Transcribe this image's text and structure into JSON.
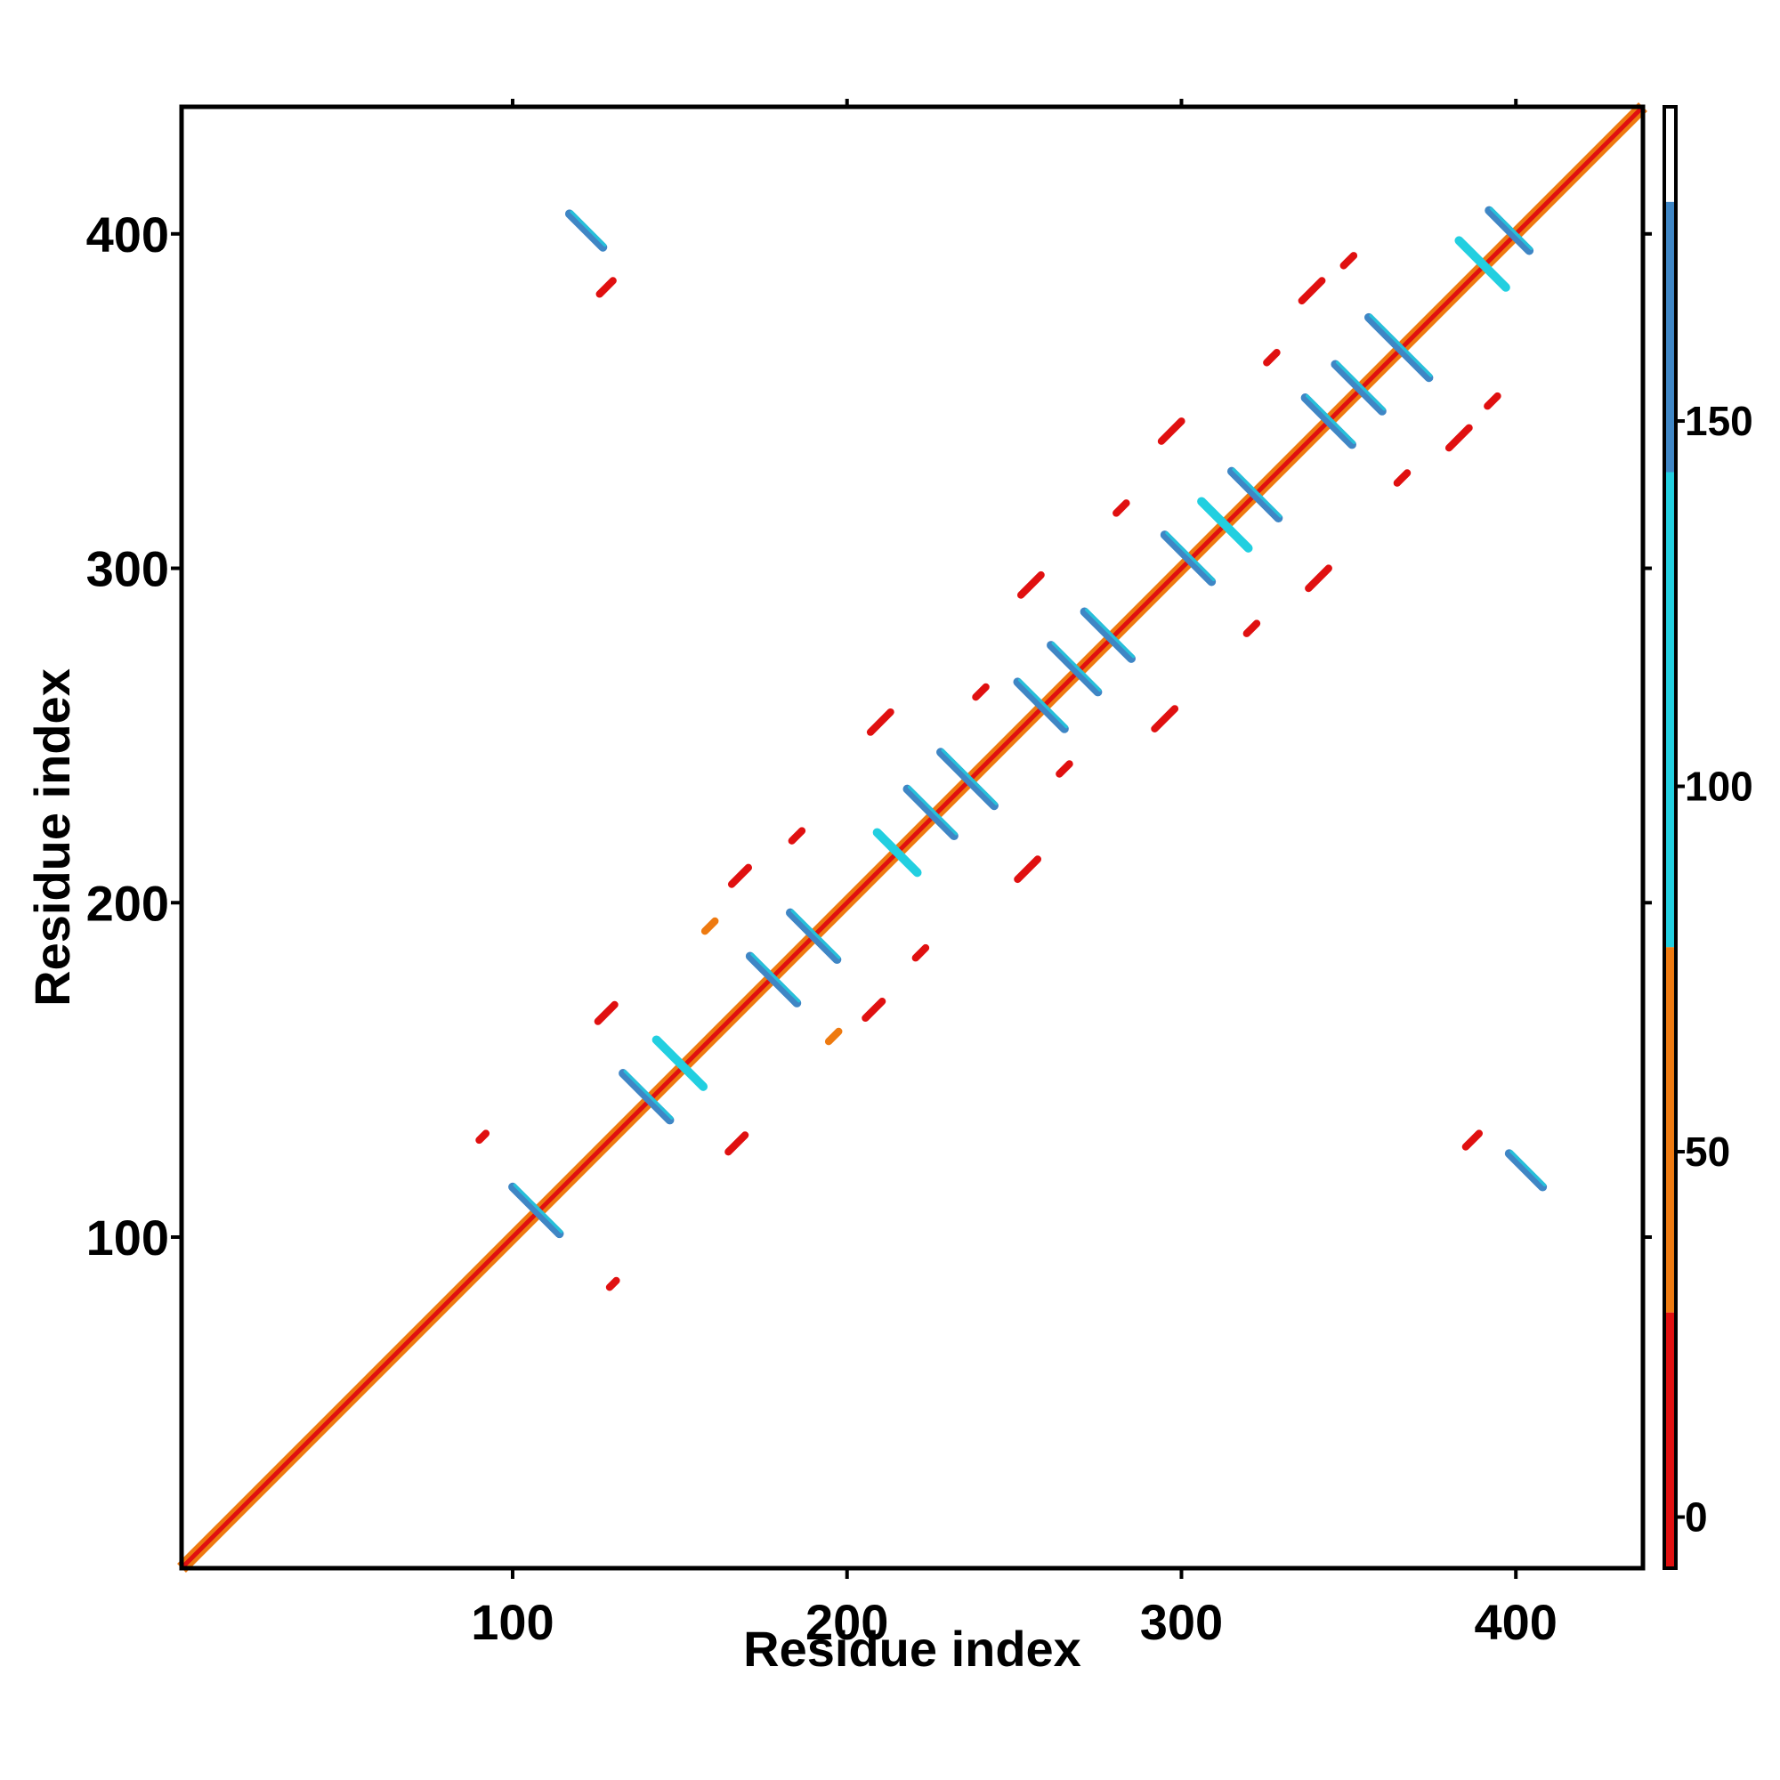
{
  "chart_data": {
    "type": "heatmap",
    "title": "",
    "xlabel": "Residue index",
    "ylabel": "Residue index",
    "xlim": [
      1,
      438
    ],
    "ylim": [
      1,
      438
    ],
    "x_ticks": [
      "100",
      "200",
      "300",
      "400"
    ],
    "y_ticks": [
      "100",
      "200",
      "300",
      "400"
    ],
    "colorbar": {
      "ticks": [
        "0",
        "50",
        "100",
        "150"
      ],
      "range": [
        -7,
        193
      ],
      "bands": [
        {
          "from": -7,
          "to": 28,
          "color": "#e01010"
        },
        {
          "from": 28,
          "to": 78,
          "color": "#ee7a10"
        },
        {
          "from": 78,
          "to": 143,
          "color": "#22cfe0"
        },
        {
          "from": 143,
          "to": 180,
          "color": "#3f86c5"
        },
        {
          "from": 180,
          "to": 193,
          "color": "#ffffff"
        }
      ]
    },
    "diagonal": {
      "from": 1,
      "to": 438
    },
    "features": [
      {
        "kind": "antiparallel",
        "x": 107,
        "y": 108,
        "len": 14,
        "color": "#3f86c5"
      },
      {
        "kind": "antiparallel",
        "x": 140,
        "y": 142,
        "len": 14,
        "color": "#3f86c5"
      },
      {
        "kind": "antiparallel",
        "x": 150,
        "y": 152,
        "len": 14,
        "color": "#22cfe0"
      },
      {
        "kind": "antiparallel",
        "x": 178,
        "y": 177,
        "len": 14,
        "color": "#3f86c5"
      },
      {
        "kind": "antiparallel",
        "x": 190,
        "y": 190,
        "len": 14,
        "color": "#3f86c5"
      },
      {
        "kind": "antiparallel",
        "x": 215,
        "y": 215,
        "len": 12,
        "color": "#22cfe0"
      },
      {
        "kind": "antiparallel",
        "x": 225,
        "y": 227,
        "len": 14,
        "color": "#3f86c5"
      },
      {
        "kind": "antiparallel",
        "x": 236,
        "y": 237,
        "len": 16,
        "color": "#3f86c5"
      },
      {
        "kind": "antiparallel",
        "x": 258,
        "y": 259,
        "len": 14,
        "color": "#3f86c5"
      },
      {
        "kind": "antiparallel",
        "x": 268,
        "y": 270,
        "len": 14,
        "color": "#3f86c5"
      },
      {
        "kind": "antiparallel",
        "x": 278,
        "y": 280,
        "len": 14,
        "color": "#3f86c5"
      },
      {
        "kind": "antiparallel",
        "x": 302,
        "y": 303,
        "len": 14,
        "color": "#3f86c5"
      },
      {
        "kind": "antiparallel",
        "x": 313,
        "y": 313,
        "len": 14,
        "color": "#22cfe0"
      },
      {
        "kind": "antiparallel",
        "x": 322,
        "y": 322,
        "len": 14,
        "color": "#3f86c5"
      },
      {
        "kind": "antiparallel",
        "x": 344,
        "y": 344,
        "len": 14,
        "color": "#3f86c5"
      },
      {
        "kind": "antiparallel",
        "x": 353,
        "y": 354,
        "len": 14,
        "color": "#3f86c5"
      },
      {
        "kind": "antiparallel",
        "x": 365,
        "y": 366,
        "len": 18,
        "color": "#3f86c5"
      },
      {
        "kind": "antiparallel",
        "x": 390,
        "y": 391,
        "len": 14,
        "color": "#22cfe0"
      },
      {
        "kind": "antiparallel",
        "x": 398,
        "y": 401,
        "len": 12,
        "color": "#3f86c5"
      },
      {
        "kind": "antiparallel",
        "x": 122,
        "y": 401,
        "len": 10,
        "color": "#3f86c5"
      },
      {
        "kind": "antiparallel",
        "x": 403,
        "y": 120,
        "len": 10,
        "color": "#3f86c5"
      },
      {
        "kind": "parallel",
        "x": 128,
        "y": 167,
        "len": 5,
        "color": "#e01010"
      },
      {
        "kind": "parallel",
        "x": 167,
        "y": 128,
        "len": 5,
        "color": "#e01010"
      },
      {
        "kind": "parallel",
        "x": 168,
        "y": 208,
        "len": 5,
        "color": "#e01010"
      },
      {
        "kind": "parallel",
        "x": 208,
        "y": 168,
        "len": 5,
        "color": "#e01010"
      },
      {
        "kind": "parallel",
        "x": 210,
        "y": 254,
        "len": 6,
        "color": "#e01010"
      },
      {
        "kind": "parallel",
        "x": 254,
        "y": 210,
        "len": 6,
        "color": "#e01010"
      },
      {
        "kind": "parallel",
        "x": 255,
        "y": 295,
        "len": 6,
        "color": "#e01010"
      },
      {
        "kind": "parallel",
        "x": 295,
        "y": 255,
        "len": 6,
        "color": "#e01010"
      },
      {
        "kind": "parallel",
        "x": 297,
        "y": 341,
        "len": 6,
        "color": "#e01010"
      },
      {
        "kind": "parallel",
        "x": 341,
        "y": 297,
        "len": 6,
        "color": "#e01010"
      },
      {
        "kind": "parallel",
        "x": 339,
        "y": 383,
        "len": 6,
        "color": "#e01010"
      },
      {
        "kind": "parallel",
        "x": 383,
        "y": 339,
        "len": 6,
        "color": "#e01010"
      },
      {
        "kind": "parallel",
        "x": 128,
        "y": 384,
        "len": 4,
        "color": "#e01010"
      },
      {
        "kind": "parallel",
        "x": 387,
        "y": 129,
        "len": 4,
        "color": "#e01010"
      },
      {
        "kind": "parallel",
        "x": 91,
        "y": 130,
        "len": 2,
        "color": "#e01010"
      },
      {
        "kind": "parallel",
        "x": 130,
        "y": 86,
        "len": 2,
        "color": "#e01010"
      },
      {
        "kind": "parallel",
        "x": 159,
        "y": 193,
        "len": 3,
        "color": "#ee7a10"
      },
      {
        "kind": "parallel",
        "x": 196,
        "y": 160,
        "len": 3,
        "color": "#ee7a10"
      },
      {
        "kind": "parallel",
        "x": 185,
        "y": 220,
        "len": 3,
        "color": "#e01010"
      },
      {
        "kind": "parallel",
        "x": 222,
        "y": 185,
        "len": 3,
        "color": "#e01010"
      },
      {
        "kind": "parallel",
        "x": 240,
        "y": 263,
        "len": 3,
        "color": "#e01010"
      },
      {
        "kind": "parallel",
        "x": 265,
        "y": 240,
        "len": 3,
        "color": "#e01010"
      },
      {
        "kind": "parallel",
        "x": 282,
        "y": 318,
        "len": 3,
        "color": "#e01010"
      },
      {
        "kind": "parallel",
        "x": 321,
        "y": 282,
        "len": 3,
        "color": "#e01010"
      },
      {
        "kind": "parallel",
        "x": 327,
        "y": 363,
        "len": 3,
        "color": "#e01010"
      },
      {
        "kind": "parallel",
        "x": 366,
        "y": 327,
        "len": 3,
        "color": "#e01010"
      },
      {
        "kind": "parallel",
        "x": 350,
        "y": 392,
        "len": 3,
        "color": "#e01010"
      },
      {
        "kind": "parallel",
        "x": 393,
        "y": 350,
        "len": 3,
        "color": "#e01010"
      }
    ]
  }
}
